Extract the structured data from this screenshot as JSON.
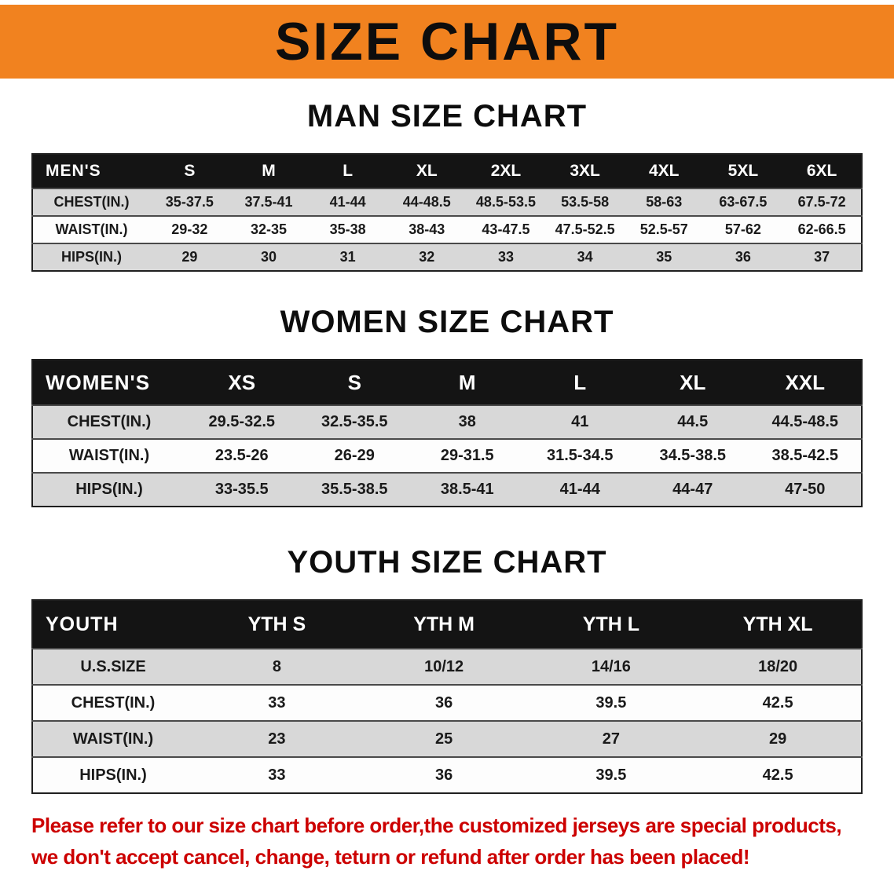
{
  "banner": {
    "title": "SIZE CHART",
    "bg_color": "#F1821F"
  },
  "sections": [
    {
      "id": "men",
      "heading": "MAN SIZE CHART",
      "table": {
        "header": [
          "MEN'S",
          "S",
          "M",
          "L",
          "XL",
          "2XL",
          "3XL",
          "4XL",
          "5XL",
          "6XL"
        ],
        "rows": [
          [
            "CHEST(IN.)",
            "35-37.5",
            "37.5-41",
            "41-44",
            "44-48.5",
            "48.5-53.5",
            "53.5-58",
            "58-63",
            "63-67.5",
            "67.5-72"
          ],
          [
            "WAIST(IN.)",
            "29-32",
            "32-35",
            "35-38",
            "38-43",
            "43-47.5",
            "47.5-52.5",
            "52.5-57",
            "57-62",
            "62-66.5"
          ],
          [
            "HIPS(IN.)",
            "29",
            "30",
            "31",
            "32",
            "33",
            "34",
            "35",
            "36",
            "37"
          ]
        ]
      }
    },
    {
      "id": "women",
      "heading": "WOMEN SIZE CHART",
      "table": {
        "header": [
          "WOMEN'S",
          "XS",
          "S",
          "M",
          "L",
          "XL",
          "XXL"
        ],
        "rows": [
          [
            "CHEST(IN.)",
            "29.5-32.5",
            "32.5-35.5",
            "38",
            "41",
            "44.5",
            "44.5-48.5"
          ],
          [
            "WAIST(IN.)",
            "23.5-26",
            "26-29",
            "29-31.5",
            "31.5-34.5",
            "34.5-38.5",
            "38.5-42.5"
          ],
          [
            "HIPS(IN.)",
            "33-35.5",
            "35.5-38.5",
            "38.5-41",
            "41-44",
            "44-47",
            "47-50"
          ]
        ]
      }
    },
    {
      "id": "youth",
      "heading": "YOUTH SIZE CHART",
      "table": {
        "header": [
          "YOUTH",
          "YTH S",
          "YTH M",
          "YTH L",
          "YTH XL"
        ],
        "rows": [
          [
            "U.S.SIZE",
            "8",
            "10/12",
            "14/16",
            "18/20"
          ],
          [
            "CHEST(IN.)",
            "33",
            "36",
            "39.5",
            "42.5"
          ],
          [
            "WAIST(IN.)",
            "23",
            "25",
            "27",
            "29"
          ],
          [
            "HIPS(IN.)",
            "33",
            "36",
            "39.5",
            "42.5"
          ]
        ]
      }
    }
  ],
  "disclaimer": {
    "line1": "Please refer to our size chart before order,the customized jerseys are special products,",
    "line2": "we don't accept cancel, change, teturn or refund after order has been placed!",
    "color": "#CC0000"
  }
}
